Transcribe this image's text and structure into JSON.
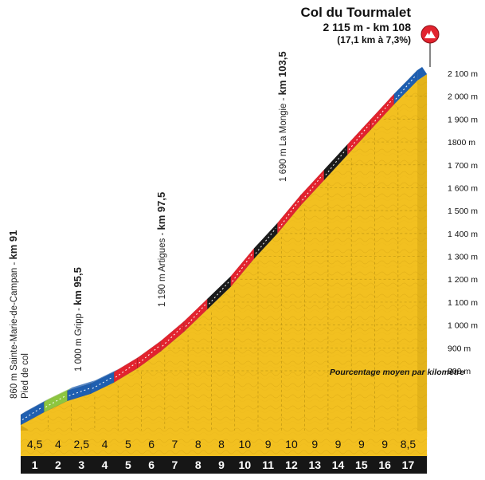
{
  "header": {
    "climb_name": "Col du Tourmalet",
    "summit_line": "2 115 m - km 108",
    "climb_stats": "(17,1 km à 7,3%)"
  },
  "summit_icon": "mountain-summit-icon",
  "points": {
    "p1": {
      "text": "860 m Sainte-Marie-de-Campan - ",
      "km": "km 91",
      "sub": "Pied de col"
    },
    "p2": {
      "text": "1 000 m Gripp - ",
      "km": "km 95,5"
    },
    "p3": {
      "text": "1 190 m Artigues - ",
      "km": "km 97,5"
    },
    "p4": {
      "text": "1 690 m La Mongie - ",
      "km": "km 103,5"
    }
  },
  "legend_note": "Pourcentage moyen par kilomètre",
  "colors": {
    "terrain": "#f2c020",
    "terrain_shadow": "#c99a12",
    "ground": "#161616",
    "band_blue": "#1f5fb0",
    "band_green": "#8dc63f",
    "band_red": "#e2232e",
    "band_black": "#1b1b1b"
  },
  "chart_data": {
    "type": "area",
    "title": "Col du Tourmalet",
    "x_label": "",
    "y_label": "",
    "km_ticks": [
      "1",
      "2",
      "3",
      "4",
      "5",
      "6",
      "7",
      "8",
      "9",
      "10",
      "11",
      "12",
      "13",
      "14",
      "15",
      "16",
      "17"
    ],
    "gradients": [
      "4,5",
      "4",
      "2,5",
      "4",
      "5",
      "6",
      "7",
      "8",
      "8",
      "10",
      "9",
      "10",
      "9",
      "9",
      "9",
      "9",
      "8,5"
    ],
    "gradient_values": [
      4.5,
      4,
      2.5,
      4,
      5,
      6,
      7,
      8,
      8,
      10,
      9,
      10,
      9,
      9,
      9,
      9,
      8.5
    ],
    "band_colors": [
      "blue",
      "green",
      "blue",
      "blue",
      "red",
      "red",
      "red",
      "red",
      "black",
      "red",
      "black",
      "red",
      "red",
      "black",
      "red",
      "red",
      "blue"
    ],
    "altitude_ticks": [
      "800 m",
      "900 m",
      "1 000 m",
      "1 100 m",
      "1 200 m",
      "1 300 m",
      "1 400 m",
      "1 500 m",
      "1 600 m",
      "1 700 m",
      "1800 m",
      "1 900 m",
      "2 000 m",
      "2 100 m"
    ],
    "y_values": [
      800,
      900,
      1000,
      1100,
      1200,
      1300,
      1400,
      1500,
      1600,
      1700,
      1800,
      1900,
      2000,
      2100
    ],
    "ylim": [
      800,
      2100
    ],
    "start_altitude": 860,
    "summit_altitude": 2115
  }
}
